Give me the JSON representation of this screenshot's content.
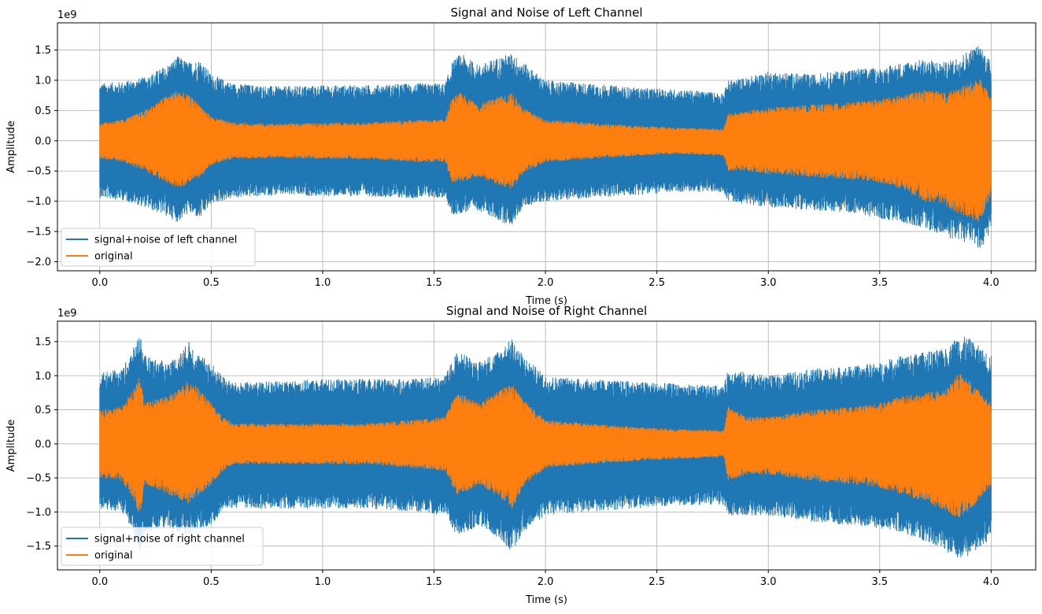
{
  "chart_data": [
    {
      "type": "line",
      "title": "Signal and Noise of Left Channel",
      "xlabel": "Time (s)",
      "ylabel": "Amplitude",
      "y_scale_label": "1e9",
      "xlim": [
        -0.19,
        4.2
      ],
      "ylim": [
        -2.15,
        1.95
      ],
      "x_ticks": [
        0.0,
        0.5,
        1.0,
        1.5,
        2.0,
        2.5,
        3.0,
        3.5,
        4.0
      ],
      "x_tick_labels": [
        "0.0",
        "0.5",
        "1.0",
        "1.5",
        "2.0",
        "2.5",
        "3.0",
        "3.5",
        "4.0"
      ],
      "y_ticks": [
        -2.0,
        -1.5,
        -1.0,
        -0.5,
        0.0,
        0.5,
        1.0,
        1.5
      ],
      "y_tick_labels": [
        "−2.0",
        "−1.5",
        "−1.0",
        "−0.5",
        "0.0",
        "0.5",
        "1.0",
        "1.5"
      ],
      "grid": true,
      "legend_position": "lower-left",
      "series": [
        {
          "name": "signal+noise of left channel",
          "color": "#1f77b4",
          "envelope": {
            "t": [
              0.0,
              0.1,
              0.2,
              0.3,
              0.35,
              0.4,
              0.45,
              0.5,
              0.6,
              0.8,
              1.0,
              1.2,
              1.4,
              1.55,
              1.58,
              1.62,
              1.7,
              1.8,
              1.85,
              1.9,
              2.0,
              2.2,
              2.4,
              2.6,
              2.8,
              2.82,
              2.9,
              3.0,
              3.2,
              3.4,
              3.5,
              3.6,
              3.7,
              3.8,
              3.9,
              3.95,
              4.0
            ],
            "upper": [
              0.95,
              0.98,
              1.05,
              1.25,
              1.4,
              1.3,
              1.35,
              1.1,
              0.95,
              0.9,
              0.92,
              0.92,
              0.95,
              0.95,
              1.3,
              1.45,
              1.25,
              1.4,
              1.45,
              1.3,
              1.0,
              0.95,
              0.88,
              0.85,
              0.8,
              1.0,
              1.05,
              1.15,
              1.1,
              1.2,
              1.2,
              1.3,
              1.35,
              1.3,
              1.5,
              1.6,
              1.3
            ],
            "lower": [
              -0.95,
              -0.98,
              -1.1,
              -1.25,
              -1.35,
              -1.2,
              -1.3,
              -1.05,
              -0.95,
              -0.9,
              -0.92,
              -0.92,
              -0.95,
              -0.95,
              -1.25,
              -1.2,
              -1.15,
              -1.35,
              -1.4,
              -1.1,
              -1.0,
              -0.95,
              -0.9,
              -0.85,
              -0.85,
              -1.0,
              -1.05,
              -1.1,
              -1.15,
              -1.2,
              -1.3,
              -1.35,
              -1.45,
              -1.6,
              -1.7,
              -1.8,
              -1.55
            ]
          }
        },
        {
          "name": "original",
          "color": "#ff7f0e",
          "envelope": {
            "t": [
              0.0,
              0.1,
              0.2,
              0.3,
              0.35,
              0.4,
              0.45,
              0.5,
              0.6,
              0.8,
              1.0,
              1.2,
              1.4,
              1.55,
              1.58,
              1.62,
              1.7,
              1.8,
              1.85,
              1.9,
              2.0,
              2.2,
              2.4,
              2.6,
              2.8,
              2.82,
              2.9,
              3.0,
              3.2,
              3.4,
              3.5,
              3.6,
              3.7,
              3.8,
              3.9,
              3.95,
              4.0
            ],
            "upper": [
              0.3,
              0.35,
              0.5,
              0.75,
              0.85,
              0.75,
              0.6,
              0.4,
              0.3,
              0.28,
              0.3,
              0.3,
              0.35,
              0.35,
              0.7,
              0.8,
              0.6,
              0.75,
              0.8,
              0.55,
              0.35,
              0.3,
              0.25,
              0.22,
              0.2,
              0.45,
              0.5,
              0.55,
              0.6,
              0.65,
              0.7,
              0.75,
              0.85,
              0.8,
              0.95,
              1.05,
              0.7
            ],
            "lower": [
              -0.3,
              -0.35,
              -0.5,
              -0.7,
              -0.8,
              -0.7,
              -0.6,
              -0.4,
              -0.3,
              -0.28,
              -0.3,
              -0.3,
              -0.35,
              -0.35,
              -0.7,
              -0.7,
              -0.6,
              -0.75,
              -0.8,
              -0.55,
              -0.35,
              -0.3,
              -0.25,
              -0.22,
              -0.25,
              -0.5,
              -0.5,
              -0.55,
              -0.6,
              -0.65,
              -0.7,
              -0.8,
              -1.0,
              -1.1,
              -1.3,
              -1.35,
              -0.9
            ]
          }
        }
      ]
    },
    {
      "type": "line",
      "title": "Signal and Noise of Right Channel",
      "xlabel": "Time (s)",
      "ylabel": "Amplitude",
      "y_scale_label": "1e9",
      "xlim": [
        -0.19,
        4.2
      ],
      "ylim": [
        -1.85,
        1.8
      ],
      "x_ticks": [
        0.0,
        0.5,
        1.0,
        1.5,
        2.0,
        2.5,
        3.0,
        3.5,
        4.0
      ],
      "x_tick_labels": [
        "0.0",
        "0.5",
        "1.0",
        "1.5",
        "2.0",
        "2.5",
        "3.0",
        "3.5",
        "4.0"
      ],
      "y_ticks": [
        -1.5,
        -1.0,
        -0.5,
        0.0,
        0.5,
        1.0,
        1.5
      ],
      "y_tick_labels": [
        "−1.5",
        "−1.0",
        "−0.5",
        "0.0",
        "0.5",
        "1.0",
        "1.5"
      ],
      "grid": true,
      "legend_position": "lower-left",
      "series": [
        {
          "name": "signal+noise of right channel",
          "color": "#1f77b4",
          "envelope": {
            "t": [
              0.0,
              0.1,
              0.15,
              0.18,
              0.2,
              0.25,
              0.3,
              0.35,
              0.4,
              0.45,
              0.5,
              0.55,
              0.6,
              0.8,
              1.0,
              1.2,
              1.4,
              1.55,
              1.6,
              1.65,
              1.7,
              1.8,
              1.85,
              1.9,
              2.0,
              2.2,
              2.4,
              2.6,
              2.8,
              2.82,
              2.9,
              3.0,
              3.2,
              3.4,
              3.5,
              3.6,
              3.7,
              3.8,
              3.85,
              3.9,
              4.0
            ],
            "upper": [
              1.05,
              1.1,
              1.4,
              1.65,
              1.3,
              1.25,
              1.2,
              1.3,
              1.5,
              1.3,
              1.2,
              1.0,
              0.9,
              0.92,
              0.95,
              0.95,
              0.95,
              1.0,
              1.35,
              1.3,
              1.2,
              1.4,
              1.55,
              1.3,
              1.0,
              0.95,
              0.92,
              0.88,
              0.85,
              1.1,
              1.05,
              1.0,
              1.1,
              1.15,
              1.2,
              1.3,
              1.35,
              1.4,
              1.6,
              1.55,
              1.3
            ],
            "lower": [
              -0.95,
              -1.0,
              -1.3,
              -1.6,
              -1.3,
              -1.25,
              -1.25,
              -1.3,
              -1.35,
              -1.25,
              -1.2,
              -1.0,
              -0.95,
              -0.95,
              -0.95,
              -0.95,
              -1.0,
              -1.05,
              -1.35,
              -1.3,
              -1.2,
              -1.4,
              -1.6,
              -1.3,
              -1.05,
              -1.0,
              -0.95,
              -0.9,
              -0.9,
              -1.05,
              -1.05,
              -1.05,
              -1.15,
              -1.2,
              -1.25,
              -1.3,
              -1.45,
              -1.6,
              -1.7,
              -1.65,
              -1.4
            ]
          }
        },
        {
          "name": "original",
          "color": "#ff7f0e",
          "envelope": {
            "t": [
              0.0,
              0.1,
              0.15,
              0.18,
              0.2,
              0.25,
              0.3,
              0.35,
              0.4,
              0.45,
              0.5,
              0.55,
              0.6,
              0.8,
              1.0,
              1.2,
              1.4,
              1.55,
              1.6,
              1.65,
              1.7,
              1.8,
              1.85,
              1.9,
              2.0,
              2.2,
              2.4,
              2.6,
              2.8,
              2.82,
              2.9,
              3.0,
              3.2,
              3.4,
              3.5,
              3.6,
              3.7,
              3.8,
              3.85,
              3.9,
              4.0
            ],
            "upper": [
              0.5,
              0.55,
              0.8,
              1.05,
              0.6,
              0.65,
              0.7,
              0.8,
              0.95,
              0.8,
              0.6,
              0.4,
              0.3,
              0.3,
              0.3,
              0.3,
              0.35,
              0.4,
              0.75,
              0.7,
              0.6,
              0.8,
              0.9,
              0.65,
              0.35,
              0.3,
              0.25,
              0.22,
              0.2,
              0.55,
              0.4,
              0.4,
              0.5,
              0.55,
              0.6,
              0.7,
              0.75,
              0.8,
              1.05,
              0.95,
              0.6
            ],
            "lower": [
              -0.5,
              -0.55,
              -0.8,
              -1.1,
              -0.6,
              -0.65,
              -0.75,
              -0.8,
              -0.9,
              -0.75,
              -0.6,
              -0.4,
              -0.3,
              -0.3,
              -0.3,
              -0.3,
              -0.35,
              -0.4,
              -0.75,
              -0.7,
              -0.6,
              -0.8,
              -0.95,
              -0.65,
              -0.35,
              -0.3,
              -0.25,
              -0.22,
              -0.2,
              -0.55,
              -0.45,
              -0.45,
              -0.55,
              -0.6,
              -0.65,
              -0.75,
              -0.85,
              -1.0,
              -1.1,
              -1.0,
              -0.6
            ]
          }
        }
      ]
    }
  ]
}
